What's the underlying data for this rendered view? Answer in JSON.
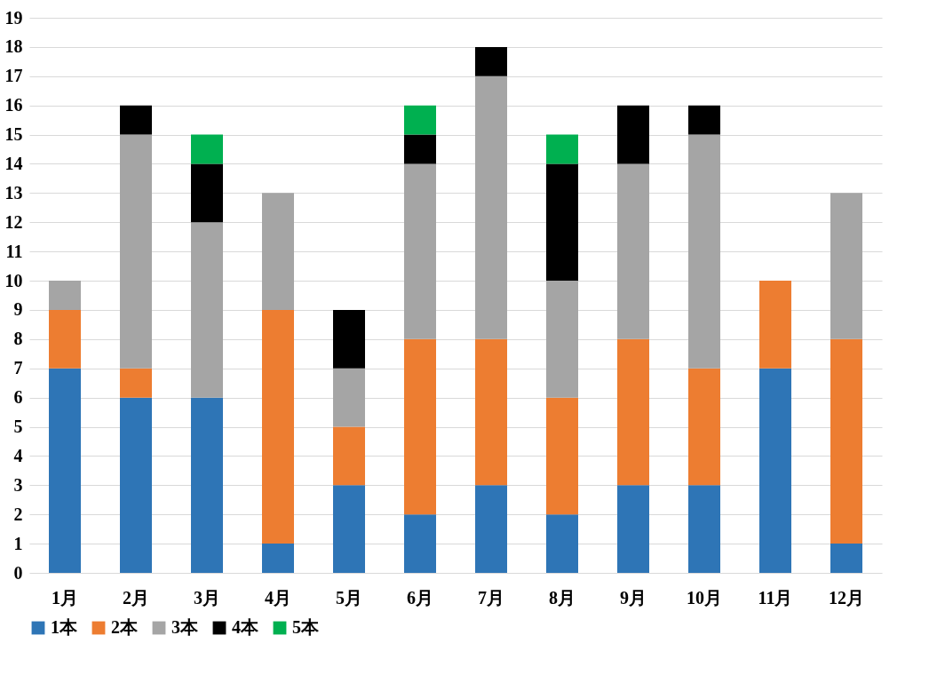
{
  "chart_data": {
    "type": "bar",
    "stacked": true,
    "categories": [
      "1月",
      "2月",
      "3月",
      "4月",
      "5月",
      "6月",
      "7月",
      "8月",
      "9月",
      "10月",
      "11月",
      "12月"
    ],
    "series": [
      {
        "name": "1本",
        "color": "#2e75b6",
        "values": [
          7,
          6,
          6,
          1,
          3,
          2,
          3,
          2,
          3,
          3,
          7,
          1
        ]
      },
      {
        "name": "2本",
        "color": "#ed7d31",
        "values": [
          2,
          1,
          0,
          8,
          2,
          6,
          5,
          4,
          5,
          4,
          3,
          7
        ]
      },
      {
        "name": "3本",
        "color": "#a5a5a5",
        "values": [
          1,
          8,
          6,
          4,
          2,
          6,
          9,
          4,
          6,
          8,
          0,
          5
        ]
      },
      {
        "name": "4本",
        "color": "#000000",
        "values": [
          0,
          1,
          2,
          0,
          2,
          1,
          1,
          4,
          2,
          1,
          0,
          0
        ]
      },
      {
        "name": "5本",
        "color": "#00b050",
        "values": [
          0,
          0,
          1,
          0,
          0,
          1,
          0,
          1,
          0,
          0,
          0,
          0
        ]
      }
    ],
    "ylim": [
      0,
      19
    ],
    "yticks": [
      0,
      1,
      2,
      3,
      4,
      5,
      6,
      7,
      8,
      9,
      10,
      11,
      12,
      13,
      14,
      15,
      16,
      17,
      18,
      19
    ],
    "grid": "y",
    "legend": "bottom"
  }
}
